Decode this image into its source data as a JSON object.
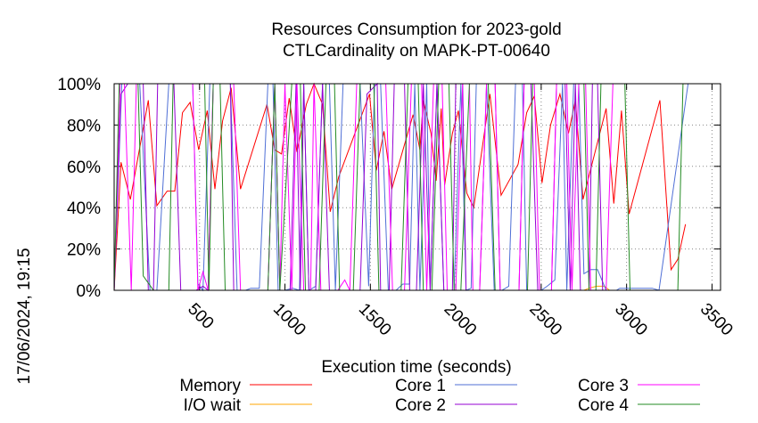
{
  "chart_data": {
    "type": "line",
    "title_lines": [
      "Resources Consumption for 2023-gold",
      "CTLCardinality on MAPK-PT-00640"
    ],
    "xlabel": "Execution time (seconds)",
    "ylabel": "",
    "side_label": "17/06/2024, 19:15",
    "xlim": [
      0,
      3550
    ],
    "ylim": [
      0,
      100
    ],
    "xticks": [
      500,
      1000,
      1500,
      2000,
      2500,
      3000,
      3500
    ],
    "yticks": [
      0,
      20,
      40,
      60,
      80,
      100
    ],
    "ytick_labels": [
      "0%",
      "20%",
      "40%",
      "60%",
      "80%",
      "100%"
    ],
    "grid": true,
    "legend_placement": "bottom",
    "series": [
      {
        "name": "Memory",
        "color": "#ff0000",
        "points": [
          [
            0,
            0
          ],
          [
            40,
            62
          ],
          [
            95,
            44
          ],
          [
            200,
            92
          ],
          [
            250,
            41
          ],
          [
            310,
            48
          ],
          [
            355,
            48
          ],
          [
            400,
            86
          ],
          [
            445,
            91
          ],
          [
            495,
            68
          ],
          [
            545,
            87
          ],
          [
            590,
            49
          ],
          [
            635,
            82
          ],
          [
            685,
            98
          ],
          [
            740,
            49
          ],
          [
            895,
            90
          ],
          [
            940,
            68
          ],
          [
            980,
            66
          ],
          [
            1025,
            93
          ],
          [
            1070,
            67
          ],
          [
            1125,
            90
          ],
          [
            1170,
            100
          ],
          [
            1220,
            90
          ],
          [
            1265,
            38
          ],
          [
            1315,
            55
          ],
          [
            1495,
            95
          ],
          [
            1535,
            58
          ],
          [
            1580,
            77
          ],
          [
            1625,
            49
          ],
          [
            1750,
            85
          ],
          [
            1790,
            68
          ],
          [
            1810,
            92
          ],
          [
            1855,
            76
          ],
          [
            1885,
            53
          ],
          [
            1915,
            88
          ],
          [
            1935,
            51
          ],
          [
            1980,
            76
          ],
          [
            2015,
            87
          ],
          [
            2065,
            47
          ],
          [
            2105,
            40
          ],
          [
            2200,
            95
          ],
          [
            2265,
            46
          ],
          [
            2365,
            61
          ],
          [
            2415,
            86
          ],
          [
            2460,
            94
          ],
          [
            2505,
            52
          ],
          [
            2555,
            80
          ],
          [
            2610,
            95
          ],
          [
            2660,
            76
          ],
          [
            2700,
            92
          ],
          [
            2745,
            44
          ],
          [
            2880,
            88
          ],
          [
            2925,
            42
          ],
          [
            2970,
            87
          ],
          [
            3015,
            37
          ],
          [
            3195,
            92
          ],
          [
            3260,
            10
          ],
          [
            3300,
            15
          ],
          [
            3345,
            32
          ]
        ]
      },
      {
        "name": "I/O wait",
        "color": "#ffa500",
        "points": [
          [
            0,
            0
          ],
          [
            1215,
            0
          ],
          [
            1260,
            0
          ],
          [
            1280,
            0
          ],
          [
            1450,
            0
          ],
          [
            2750,
            0
          ],
          [
            2780,
            1
          ],
          [
            2825,
            2
          ],
          [
            2870,
            2
          ],
          [
            2900,
            0
          ],
          [
            3350,
            0
          ]
        ]
      },
      {
        "name": "Core 1",
        "color": "#4f6fd6",
        "points": [
          [
            0,
            0
          ],
          [
            45,
            100
          ],
          [
            150,
            100
          ],
          [
            210,
            0
          ],
          [
            250,
            0
          ],
          [
            320,
            100
          ],
          [
            460,
            100
          ],
          [
            490,
            3
          ],
          [
            520,
            0
          ],
          [
            560,
            100
          ],
          [
            680,
            100
          ],
          [
            720,
            0
          ],
          [
            770,
            0
          ],
          [
            800,
            1
          ],
          [
            850,
            1
          ],
          [
            900,
            100
          ],
          [
            930,
            100
          ],
          [
            960,
            0
          ],
          [
            1000,
            0
          ],
          [
            1045,
            1
          ],
          [
            1085,
            0
          ],
          [
            1110,
            100
          ],
          [
            1140,
            0
          ],
          [
            1180,
            2
          ],
          [
            1220,
            100
          ],
          [
            1260,
            100
          ],
          [
            1295,
            0
          ],
          [
            1340,
            100
          ],
          [
            1440,
            100
          ],
          [
            1490,
            2
          ],
          [
            1525,
            100
          ],
          [
            1560,
            100
          ],
          [
            1605,
            0
          ],
          [
            1650,
            0
          ],
          [
            1690,
            3
          ],
          [
            1730,
            3
          ],
          [
            1760,
            100
          ],
          [
            1790,
            0
          ],
          [
            1830,
            100
          ],
          [
            1850,
            0
          ],
          [
            1890,
            100
          ],
          [
            1930,
            0
          ],
          [
            1990,
            0
          ],
          [
            2030,
            100
          ],
          [
            2060,
            0
          ],
          [
            2090,
            1
          ],
          [
            2120,
            100
          ],
          [
            2180,
            100
          ],
          [
            2225,
            0
          ],
          [
            2270,
            0
          ],
          [
            2310,
            2
          ],
          [
            2350,
            100
          ],
          [
            2390,
            100
          ],
          [
            2415,
            0
          ],
          [
            2500,
            0
          ],
          [
            2535,
            2
          ],
          [
            2580,
            5
          ],
          [
            2625,
            100
          ],
          [
            2650,
            0
          ],
          [
            2690,
            100
          ],
          [
            2720,
            100
          ],
          [
            2750,
            8
          ],
          [
            2790,
            10
          ],
          [
            2830,
            10
          ],
          [
            2880,
            0
          ],
          [
            2940,
            0
          ],
          [
            2960,
            1
          ],
          [
            3150,
            1
          ],
          [
            3190,
            0
          ],
          [
            3360,
            100
          ],
          [
            3400,
            100
          ]
        ]
      },
      {
        "name": "Core 2",
        "color": "#9400d3",
        "points": [
          [
            0,
            0
          ],
          [
            40,
            95
          ],
          [
            80,
            100
          ],
          [
            170,
            100
          ],
          [
            200,
            0
          ],
          [
            230,
            0
          ],
          [
            255,
            100
          ],
          [
            350,
            100
          ],
          [
            390,
            0
          ],
          [
            450,
            0
          ],
          [
            480,
            0
          ],
          [
            520,
            2
          ],
          [
            550,
            0
          ],
          [
            580,
            100
          ],
          [
            680,
            100
          ],
          [
            700,
            0
          ],
          [
            900,
            0
          ],
          [
            940,
            100
          ],
          [
            970,
            0
          ],
          [
            1030,
            0
          ],
          [
            1065,
            100
          ],
          [
            1090,
            0
          ],
          [
            1110,
            100
          ],
          [
            1140,
            0
          ],
          [
            1180,
            0
          ],
          [
            1220,
            100
          ],
          [
            1260,
            0
          ],
          [
            1440,
            0
          ],
          [
            1480,
            95
          ],
          [
            1540,
            100
          ],
          [
            1560,
            0
          ],
          [
            1610,
            0
          ],
          [
            1640,
            100
          ],
          [
            1700,
            100
          ],
          [
            1730,
            0
          ],
          [
            1770,
            0
          ],
          [
            1810,
            100
          ],
          [
            1850,
            0
          ],
          [
            1890,
            100
          ],
          [
            1930,
            0
          ],
          [
            1980,
            0
          ],
          [
            2000,
            100
          ],
          [
            2040,
            100
          ],
          [
            2060,
            0
          ],
          [
            2140,
            0
          ],
          [
            2180,
            100
          ],
          [
            2230,
            100
          ],
          [
            2260,
            0
          ],
          [
            2370,
            0
          ],
          [
            2400,
            100
          ],
          [
            2440,
            100
          ],
          [
            2480,
            0
          ],
          [
            2560,
            0
          ],
          [
            2590,
            100
          ],
          [
            2640,
            100
          ],
          [
            2670,
            0
          ],
          [
            2700,
            100
          ],
          [
            2730,
            0
          ],
          [
            2780,
            0
          ],
          [
            2800,
            100
          ],
          [
            2830,
            100
          ],
          [
            2860,
            0
          ],
          [
            3350,
            0
          ]
        ]
      },
      {
        "name": "Core 3",
        "color": "#ff00ff",
        "points": [
          [
            0,
            0
          ],
          [
            35,
            100
          ],
          [
            60,
            100
          ],
          [
            100,
            0
          ],
          [
            130,
            100
          ],
          [
            460,
            100
          ],
          [
            490,
            0
          ],
          [
            520,
            9
          ],
          [
            550,
            0
          ],
          [
            580,
            100
          ],
          [
            700,
            100
          ],
          [
            740,
            0
          ],
          [
            900,
            0
          ],
          [
            940,
            100
          ],
          [
            970,
            0
          ],
          [
            1000,
            100
          ],
          [
            1040,
            0
          ],
          [
            1070,
            100
          ],
          [
            1110,
            0
          ],
          [
            1150,
            0
          ],
          [
            1170,
            100
          ],
          [
            1210,
            0
          ],
          [
            1260,
            0
          ],
          [
            1310,
            0
          ],
          [
            1350,
            5
          ],
          [
            1380,
            0
          ],
          [
            1420,
            100
          ],
          [
            1590,
            100
          ],
          [
            1630,
            0
          ],
          [
            1700,
            0
          ],
          [
            1740,
            100
          ],
          [
            1800,
            100
          ],
          [
            1830,
            0
          ],
          [
            1870,
            100
          ],
          [
            1920,
            100
          ],
          [
            1950,
            0
          ],
          [
            2000,
            0
          ],
          [
            2040,
            100
          ],
          [
            2080,
            100
          ],
          [
            2100,
            0
          ],
          [
            2140,
            0
          ],
          [
            2180,
            100
          ],
          [
            2230,
            100
          ],
          [
            2260,
            0
          ],
          [
            2370,
            0
          ],
          [
            2400,
            100
          ],
          [
            2460,
            100
          ],
          [
            2490,
            0
          ],
          [
            2560,
            0
          ],
          [
            2590,
            100
          ],
          [
            2650,
            100
          ],
          [
            2680,
            0
          ],
          [
            2720,
            100
          ],
          [
            2760,
            100
          ],
          [
            2790,
            0
          ],
          [
            2880,
            0
          ],
          [
            2920,
            100
          ],
          [
            3550,
            100
          ]
        ]
      },
      {
        "name": "Core 4",
        "color": "#238b23",
        "points": [
          [
            0,
            0
          ],
          [
            30,
            100
          ],
          [
            140,
            100
          ],
          [
            170,
            7
          ],
          [
            230,
            0
          ],
          [
            320,
            0
          ],
          [
            345,
            100
          ],
          [
            530,
            100
          ],
          [
            555,
            0
          ],
          [
            580,
            100
          ],
          [
            620,
            100
          ],
          [
            650,
            0
          ],
          [
            900,
            0
          ],
          [
            940,
            100
          ],
          [
            970,
            0
          ],
          [
            1040,
            100
          ],
          [
            1090,
            100
          ],
          [
            1120,
            0
          ],
          [
            1200,
            0
          ],
          [
            1240,
            100
          ],
          [
            1290,
            100
          ],
          [
            1320,
            0
          ],
          [
            1400,
            0
          ],
          [
            1440,
            100
          ],
          [
            1520,
            100
          ],
          [
            1550,
            0
          ],
          [
            1680,
            0
          ],
          [
            1720,
            100
          ],
          [
            1780,
            100
          ],
          [
            1810,
            0
          ],
          [
            1860,
            0
          ],
          [
            1900,
            100
          ],
          [
            1960,
            100
          ],
          [
            1990,
            0
          ],
          [
            2030,
            0
          ],
          [
            2080,
            100
          ],
          [
            2190,
            100
          ],
          [
            2230,
            0
          ],
          [
            2420,
            0
          ],
          [
            2450,
            100
          ],
          [
            2750,
            100
          ],
          [
            2780,
            0
          ],
          [
            2820,
            0
          ],
          [
            2850,
            100
          ],
          [
            2990,
            100
          ],
          [
            3020,
            0
          ],
          [
            3300,
            0
          ],
          [
            3330,
            100
          ],
          [
            3550,
            100
          ]
        ]
      }
    ]
  }
}
